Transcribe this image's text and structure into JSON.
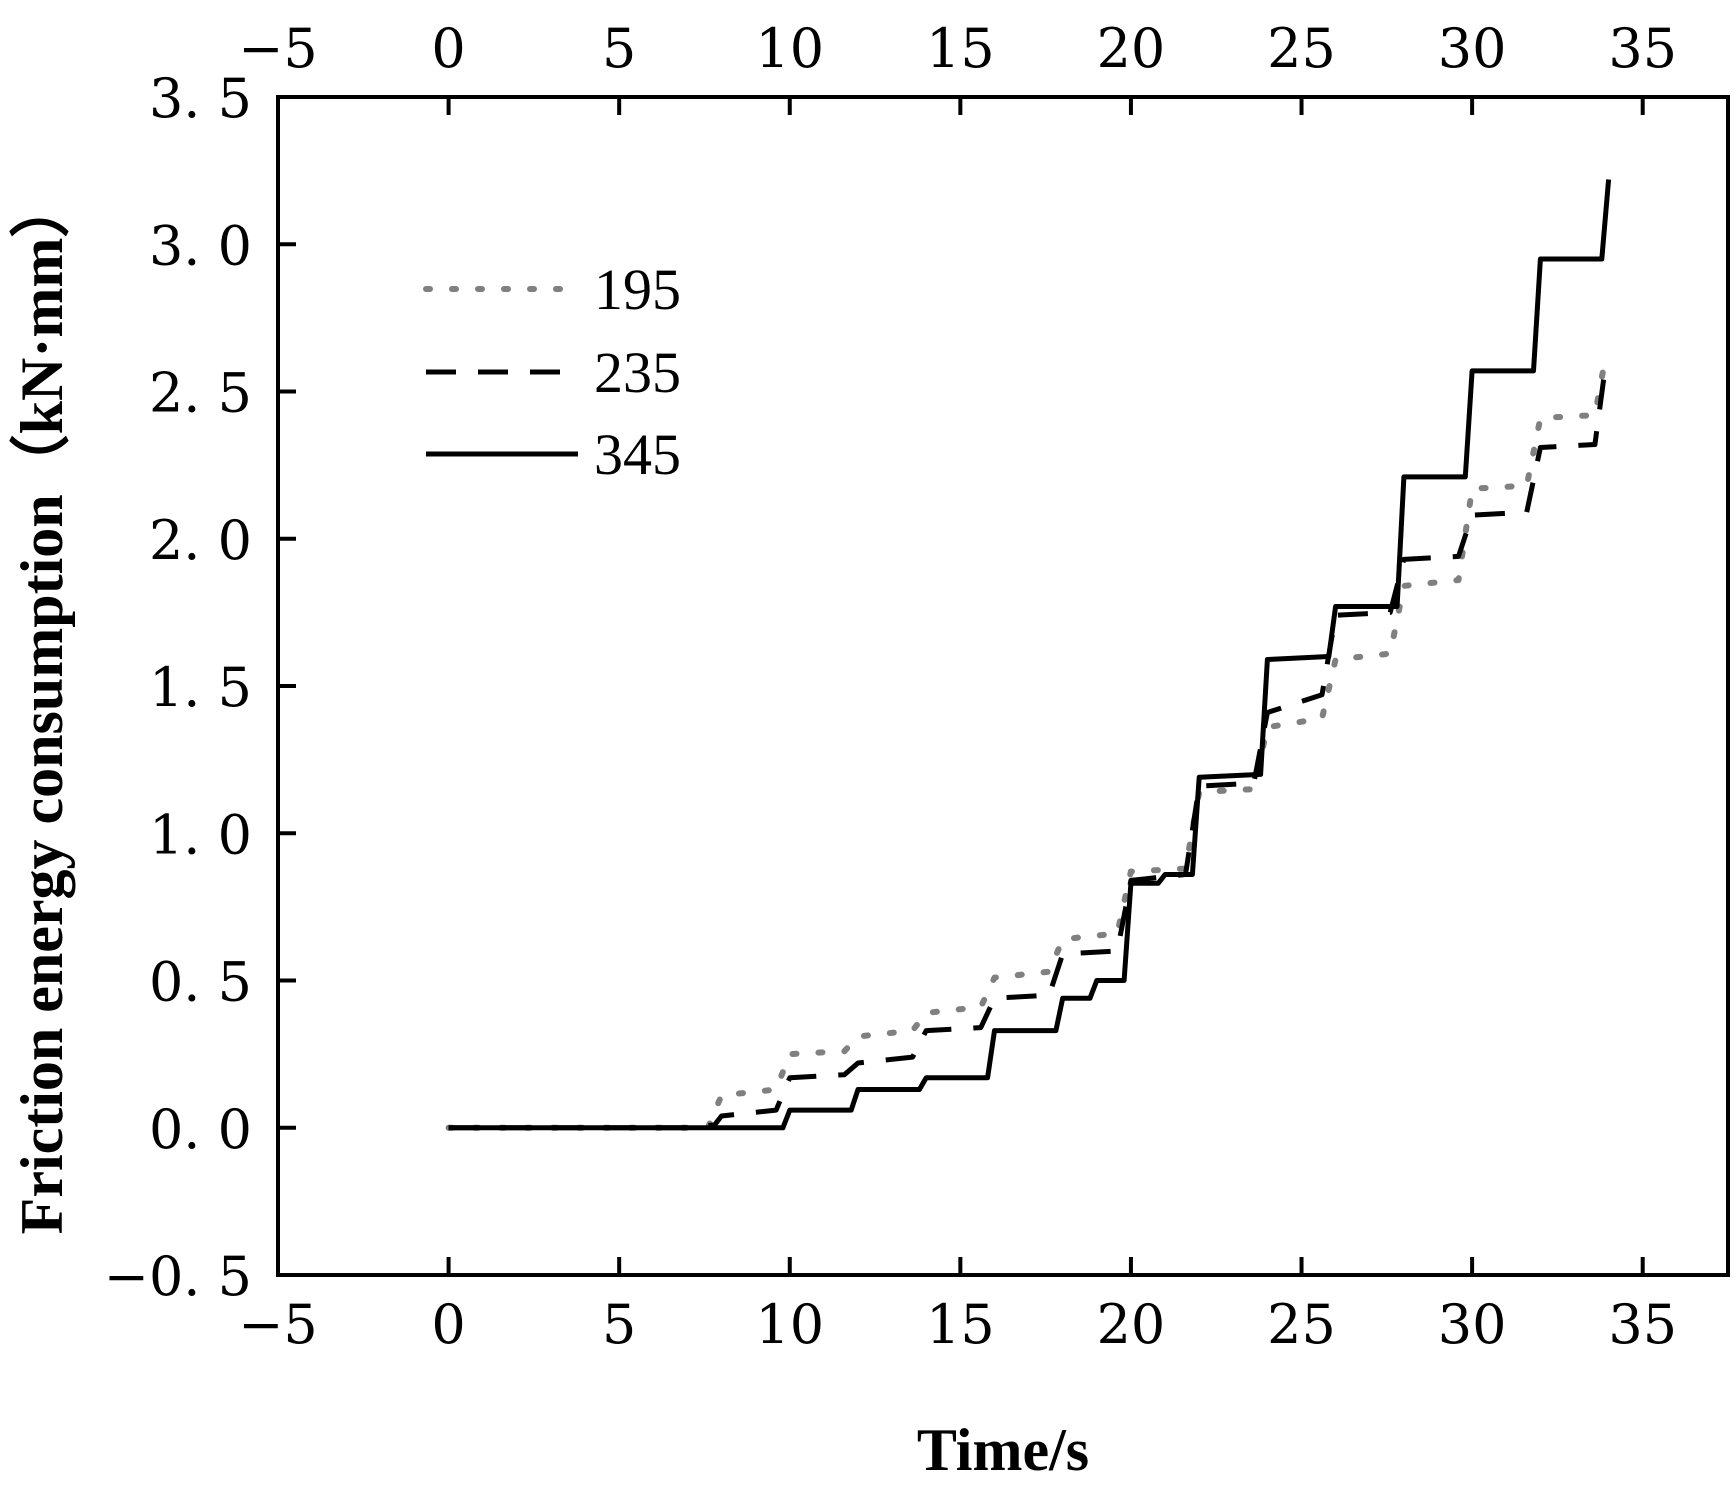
{
  "chart_data": {
    "type": "line",
    "xlabel": "Time/s",
    "ylabel": "Friction energy consumption（kN·mm）",
    "xlim": [
      -5,
      37.5
    ],
    "ylim": [
      -0.5,
      3.5
    ],
    "x_ticks": [
      -5,
      0,
      5,
      10,
      15,
      20,
      25,
      30,
      35
    ],
    "x_tick_labels": [
      "−5",
      "0",
      "5",
      "10",
      "15",
      "20",
      "25",
      "30",
      "35"
    ],
    "y_ticks": [
      -0.5,
      0.0,
      0.5,
      1.0,
      1.5,
      2.0,
      2.5,
      3.0,
      3.5
    ],
    "y_tick_labels": [
      "−0. 5",
      "0. 0",
      "0. 5",
      "1. 0",
      "1. 5",
      "2. 0",
      "2. 5",
      "3. 0",
      "3. 5"
    ],
    "grid": false,
    "legend_position": "top-left",
    "series": [
      {
        "name": "195",
        "style": "dotted",
        "color": "#808080",
        "points": [
          [
            0,
            0
          ],
          [
            7.6,
            0
          ],
          [
            8.0,
            0.11
          ],
          [
            9.6,
            0.13
          ],
          [
            10.0,
            0.25
          ],
          [
            11.6,
            0.26
          ],
          [
            12.0,
            0.31
          ],
          [
            13.6,
            0.33
          ],
          [
            14.0,
            0.39
          ],
          [
            15.6,
            0.41
          ],
          [
            16.0,
            0.51
          ],
          [
            17.6,
            0.53
          ],
          [
            18.0,
            0.64
          ],
          [
            19.6,
            0.66
          ],
          [
            20.0,
            0.87
          ],
          [
            21.6,
            0.88
          ],
          [
            22.0,
            1.14
          ],
          [
            23.6,
            1.15
          ],
          [
            24.0,
            1.36
          ],
          [
            25.6,
            1.39
          ],
          [
            26.0,
            1.59
          ],
          [
            27.6,
            1.61
          ],
          [
            28.0,
            1.84
          ],
          [
            29.6,
            1.86
          ],
          [
            30.0,
            2.17
          ],
          [
            31.6,
            2.18
          ],
          [
            32.0,
            2.41
          ],
          [
            33.6,
            2.42
          ],
          [
            33.9,
            2.61
          ]
        ]
      },
      {
        "name": "235",
        "style": "dashed",
        "color": "#000000",
        "points": [
          [
            0,
            0
          ],
          [
            7.0,
            0
          ],
          [
            7.8,
            0.01
          ],
          [
            8.0,
            0.04
          ],
          [
            9.6,
            0.06
          ],
          [
            10.0,
            0.17
          ],
          [
            11.6,
            0.18
          ],
          [
            12.0,
            0.22
          ],
          [
            13.6,
            0.24
          ],
          [
            14.0,
            0.33
          ],
          [
            15.6,
            0.34
          ],
          [
            16.0,
            0.44
          ],
          [
            17.6,
            0.45
          ],
          [
            18.0,
            0.59
          ],
          [
            19.6,
            0.6
          ],
          [
            20.0,
            0.84
          ],
          [
            21.6,
            0.86
          ],
          [
            22.0,
            1.16
          ],
          [
            23.6,
            1.17
          ],
          [
            24.0,
            1.41
          ],
          [
            25.6,
            1.47
          ],
          [
            26.0,
            1.74
          ],
          [
            27.6,
            1.75
          ],
          [
            28.0,
            1.93
          ],
          [
            29.6,
            1.94
          ],
          [
            30.0,
            2.08
          ],
          [
            31.6,
            2.09
          ],
          [
            32.0,
            2.31
          ],
          [
            33.6,
            2.32
          ],
          [
            33.9,
            2.58
          ]
        ]
      },
      {
        "name": "345",
        "style": "solid",
        "color": "#000000",
        "points": [
          [
            0,
            0
          ],
          [
            9.8,
            0
          ],
          [
            10.0,
            0.06
          ],
          [
            11.8,
            0.06
          ],
          [
            12.0,
            0.13
          ],
          [
            13.8,
            0.13
          ],
          [
            14.0,
            0.17
          ],
          [
            15.8,
            0.17
          ],
          [
            16.0,
            0.33
          ],
          [
            17.8,
            0.33
          ],
          [
            18.0,
            0.44
          ],
          [
            18.8,
            0.44
          ],
          [
            19.0,
            0.5
          ],
          [
            19.8,
            0.5
          ],
          [
            20.0,
            0.83
          ],
          [
            20.8,
            0.83
          ],
          [
            21.0,
            0.86
          ],
          [
            21.8,
            0.86
          ],
          [
            22.0,
            1.19
          ],
          [
            23.8,
            1.2
          ],
          [
            24.0,
            1.59
          ],
          [
            25.8,
            1.6
          ],
          [
            26.0,
            1.77
          ],
          [
            27.8,
            1.77
          ],
          [
            28.0,
            2.21
          ],
          [
            29.8,
            2.21
          ],
          [
            30.0,
            2.57
          ],
          [
            31.8,
            2.57
          ],
          [
            32.0,
            2.95
          ],
          [
            33.8,
            2.95
          ],
          [
            34.0,
            3.22
          ]
        ]
      }
    ]
  }
}
